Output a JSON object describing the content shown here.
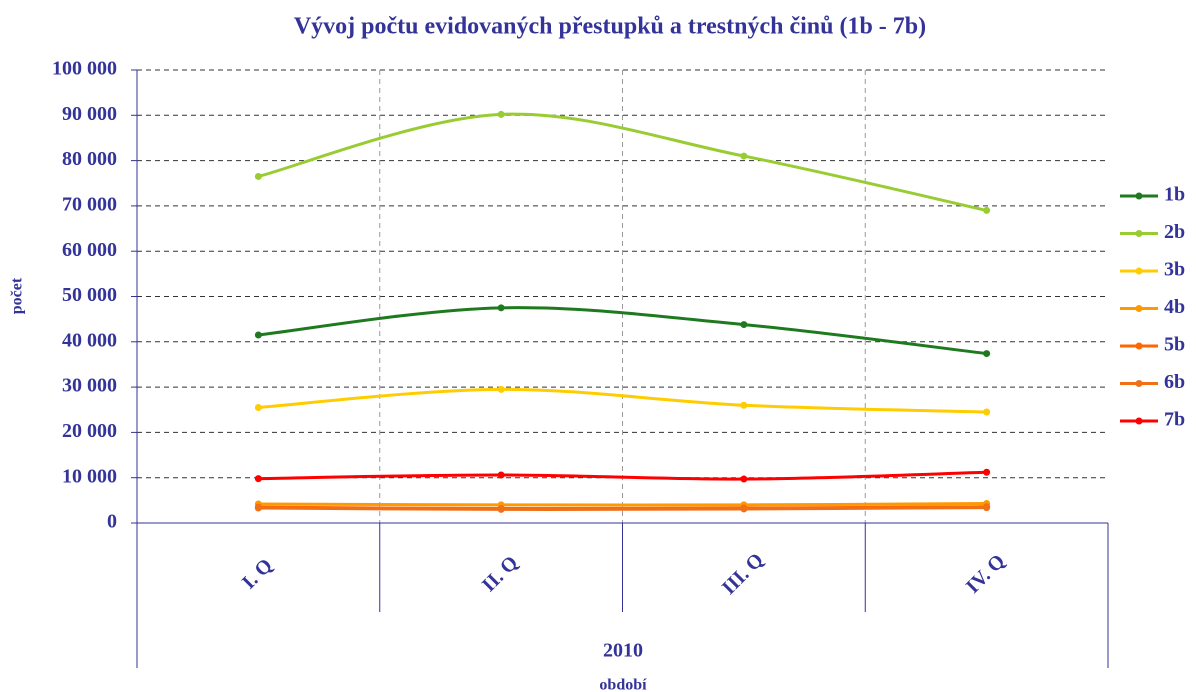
{
  "chart_data": {
    "type": "line",
    "title": "Vývoj počtu evidovaných přestupků a trestných činů (1b - 7b)",
    "categories": [
      "I. Q",
      "II. Q",
      "III. Q",
      "IV. Q"
    ],
    "x_group": "2010",
    "x_label": "období",
    "y_label": "počet",
    "ylim": [
      0,
      100000
    ],
    "yticks": [
      0,
      {
        "value": 10000,
        "label": "10 000"
      },
      {
        "value": 20000,
        "label": "20 000"
      },
      {
        "value": 30000,
        "label": "30 000"
      },
      {
        "value": 40000,
        "label": "40 000"
      },
      {
        "value": 50000,
        "label": "50 000"
      },
      {
        "value": 60000,
        "label": "60 000"
      },
      {
        "value": 70000,
        "label": "70 000"
      },
      {
        "value": 80000,
        "label": "80 000"
      },
      {
        "value": 90000,
        "label": "90 000"
      },
      {
        "value": 100000,
        "label": "100 000"
      }
    ],
    "grid": true,
    "legend": "right",
    "series": [
      {
        "name": "1b",
        "color": "#1f7a1f",
        "values": [
          41500,
          47500,
          43800,
          37400
        ]
      },
      {
        "name": "2b",
        "color": "#99cc33",
        "values": [
          76500,
          90200,
          81000,
          69000
        ]
      },
      {
        "name": "3b",
        "color": "#ffcc00",
        "values": [
          25500,
          29500,
          26000,
          24500
        ]
      },
      {
        "name": "4b",
        "color": "#ff9900",
        "values": [
          4200,
          4000,
          4000,
          4300
        ]
      },
      {
        "name": "5b",
        "color": "#ff6600",
        "values": [
          3500,
          3200,
          3300,
          3600
        ]
      },
      {
        "name": "6b",
        "color": "#f0701a",
        "values": [
          3300,
          3000,
          3100,
          3400
        ]
      },
      {
        "name": "7b",
        "color": "#ff0000",
        "values": [
          9800,
          10600,
          9700,
          11200
        ]
      }
    ]
  }
}
